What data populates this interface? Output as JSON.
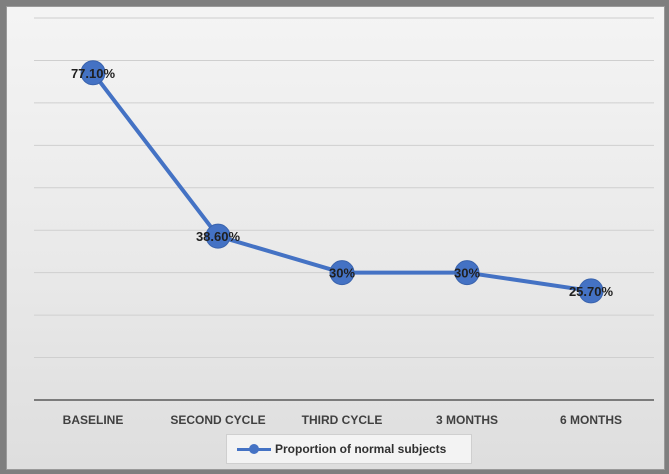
{
  "chart_data": {
    "type": "line",
    "categories": [
      "BASELINE",
      "SECOND CYCLE",
      "THIRD CYCLE",
      "3 MONTHS",
      "6 MONTHS"
    ],
    "series": [
      {
        "name": "Proportion of normal subjects",
        "values": [
          77.1,
          38.6,
          30,
          30,
          25.7
        ],
        "data_labels": [
          "77.10%",
          "38.60%",
          "30%",
          "30%",
          "25.70%"
        ],
        "color": "#4472c4"
      }
    ],
    "ylim": [
      0,
      90
    ],
    "grid": true,
    "legend_position": "bottom"
  }
}
